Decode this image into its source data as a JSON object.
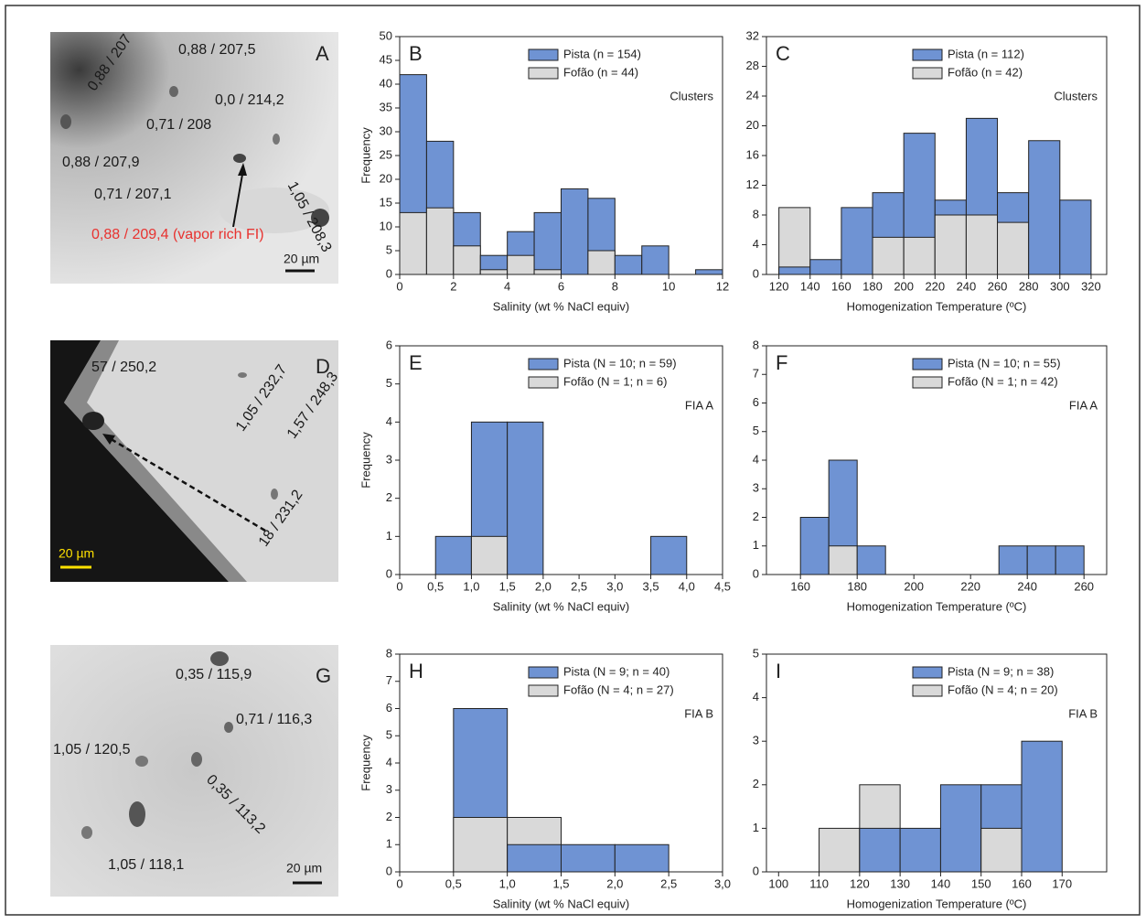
{
  "chart_data": [
    {
      "type": "histogram",
      "panel": "B",
      "annotation": "Clusters",
      "xlabel": "Salinity (wt % NaCl equiv)",
      "ylabel": "Frequency",
      "bins": [
        0,
        1,
        2,
        3,
        4,
        5,
        6,
        7,
        8,
        9,
        10,
        11,
        12
      ],
      "series": [
        {
          "name": "Pista (n = 154)",
          "color": "#6f93d3",
          "values": [
            42,
            28,
            13,
            4,
            9,
            13,
            18,
            16,
            4,
            6,
            0,
            1
          ]
        },
        {
          "name": "Fofão (n = 44)",
          "color": "#d9d9d9",
          "values": [
            13,
            14,
            6,
            1,
            4,
            1,
            0,
            5,
            0,
            0,
            0,
            0
          ]
        }
      ],
      "xlim": [
        0,
        12
      ],
      "xticks": [
        0,
        2,
        4,
        6,
        8,
        10,
        12
      ],
      "ylim": [
        0,
        50
      ],
      "yticks": [
        0,
        5,
        10,
        15,
        20,
        25,
        30,
        35,
        40,
        45,
        50
      ]
    },
    {
      "type": "histogram",
      "panel": "C",
      "annotation": "Clusters",
      "xlabel": "Homogenization Temperature (ºC)",
      "bins": [
        120,
        140,
        160,
        180,
        200,
        220,
        240,
        260,
        280,
        300,
        320
      ],
      "series": [
        {
          "name": "Pista (n = 112)",
          "color": "#6f93d3",
          "values": [
            1,
            2,
            9,
            11,
            19,
            10,
            21,
            11,
            18,
            10
          ]
        },
        {
          "name": "Fofão (n = 42)",
          "color": "#d9d9d9",
          "values": [
            9,
            0,
            0,
            5,
            5,
            8,
            8,
            7,
            0,
            0
          ]
        }
      ],
      "xlim": [
        112,
        330
      ],
      "xticks": [
        120,
        140,
        160,
        180,
        200,
        220,
        240,
        260,
        280,
        300,
        320
      ],
      "ylim": [
        0,
        32
      ],
      "yticks": [
        0,
        4,
        8,
        12,
        16,
        20,
        24,
        28,
        32
      ]
    },
    {
      "type": "histogram",
      "panel": "E",
      "annotation": "FIA A",
      "xlabel": "Salinity (wt % NaCl equiv)",
      "ylabel": "Frequency",
      "bins": [
        0,
        0.5,
        1,
        1.5,
        2,
        2.5,
        3,
        3.5,
        4,
        4.5
      ],
      "series": [
        {
          "name": "Pista (N = 10; n = 59)",
          "color": "#6f93d3",
          "values": [
            0,
            1,
            4,
            4,
            0,
            0,
            0,
            1,
            0
          ]
        },
        {
          "name": "Fofão (N = 1; n = 6)",
          "color": "#d9d9d9",
          "values": [
            0,
            0,
            1,
            0,
            0,
            0,
            0,
            0,
            0
          ]
        }
      ],
      "xlim": [
        0,
        4.5
      ],
      "xticks": [
        0,
        {
          "value": 0.5,
          "label": "0,5"
        },
        {
          "value": 1,
          "label": "1,0"
        },
        {
          "value": 1.5,
          "label": "1,5"
        },
        {
          "value": 2,
          "label": "2,0"
        },
        {
          "value": 2.5,
          "label": "2,5"
        },
        {
          "value": 3,
          "label": "3,0"
        },
        {
          "value": 3.5,
          "label": "3,5"
        },
        {
          "value": 4,
          "label": "4,0"
        },
        {
          "value": 4.5,
          "label": "4,5"
        }
      ],
      "ylim": [
        0,
        6
      ],
      "yticks": [
        0,
        1,
        2,
        3,
        4,
        5,
        6
      ]
    },
    {
      "type": "histogram",
      "panel": "F",
      "annotation": "FIA A",
      "xlabel": "Homogenization Temperature (ºC)",
      "bins": [
        160,
        170,
        180,
        190,
        200,
        210,
        220,
        230,
        240,
        250,
        260
      ],
      "series": [
        {
          "name": "Pista (N = 10; n = 55)",
          "color": "#6f93d3",
          "values": [
            2,
            4,
            1,
            0,
            0,
            0,
            0,
            1,
            1,
            1
          ]
        },
        {
          "name": "Fofão (N = 1; n = 42)",
          "color": "#d9d9d9",
          "values": [
            0,
            1,
            0,
            0,
            0,
            0,
            0,
            0,
            0,
            0
          ]
        }
      ],
      "xlim": [
        148,
        268
      ],
      "xticks": [
        160,
        180,
        200,
        220,
        240,
        260
      ],
      "ylim": [
        0,
        8
      ],
      "yticks": [
        0,
        1,
        2,
        3,
        4,
        5,
        6,
        7,
        8
      ]
    },
    {
      "type": "histogram",
      "panel": "H",
      "annotation": "FIA B",
      "xlabel": "Salinity (wt % NaCl equiv)",
      "ylabel": "Frequency",
      "bins": [
        0,
        0.5,
        1,
        1.5,
        2,
        2.5,
        3
      ],
      "series": [
        {
          "name": "Pista (N = 9; n = 40)",
          "color": "#6f93d3",
          "values": [
            0,
            6,
            1,
            1,
            1,
            0
          ]
        },
        {
          "name": "Fofão (N = 4; n = 27)",
          "color": "#d9d9d9",
          "values": [
            0,
            2,
            2,
            0,
            0,
            0
          ]
        }
      ],
      "xlim": [
        0,
        3
      ],
      "xticks": [
        0,
        {
          "value": 0.5,
          "label": "0,5"
        },
        {
          "value": 1,
          "label": "1,0"
        },
        {
          "value": 1.5,
          "label": "1,5"
        },
        {
          "value": 2,
          "label": "2,0"
        },
        {
          "value": 2.5,
          "label": "2,5"
        },
        {
          "value": 3,
          "label": "3,0"
        }
      ],
      "ylim": [
        0,
        8
      ],
      "yticks": [
        0,
        1,
        2,
        3,
        4,
        5,
        6,
        7,
        8
      ]
    },
    {
      "type": "histogram",
      "panel": "I",
      "annotation": "FIA B",
      "xlabel": "Homogenization Temperature (ºC)",
      "bins": [
        110,
        120,
        130,
        140,
        150,
        160,
        170
      ],
      "series": [
        {
          "name": "Pista (N = 9; n = 38)",
          "color": "#6f93d3",
          "values": [
            0,
            1,
            1,
            2,
            2,
            3
          ]
        },
        {
          "name": "Fofão (N = 4; n = 20)",
          "color": "#d9d9d9",
          "values": [
            1,
            2,
            0,
            0,
            1,
            0
          ]
        }
      ],
      "xlim": [
        97,
        181
      ],
      "xticks": [
        100,
        110,
        120,
        130,
        140,
        150,
        160,
        170
      ],
      "ylim": [
        0,
        5
      ],
      "yticks": [
        0,
        1,
        2,
        3,
        4,
        5
      ]
    }
  ],
  "images": [
    {
      "panel": "A",
      "labels": [
        "0,88 / 207,5",
        "0,88 / 207",
        "0,0 / 214,2",
        "0,71 / 208",
        "0,88 / 207,9",
        "1,05 / 208,3",
        "0,71 / 207,1",
        "0,88 / 209,4 (vapor rich FI)"
      ],
      "scale": "20 µm"
    },
    {
      "panel": "D",
      "labels": [
        "57 / 250,2",
        "1,05 / 232,7",
        "1,57 / 248,3",
        "18 / 231,2"
      ],
      "scale": "20 µm"
    },
    {
      "panel": "G",
      "labels": [
        "0,35 / 115,9",
        "0,71 / 116,3",
        "1,05 / 120,5",
        "0,35 / 113,2",
        "1,05 / 118,1"
      ],
      "scale": "20 µm"
    }
  ]
}
